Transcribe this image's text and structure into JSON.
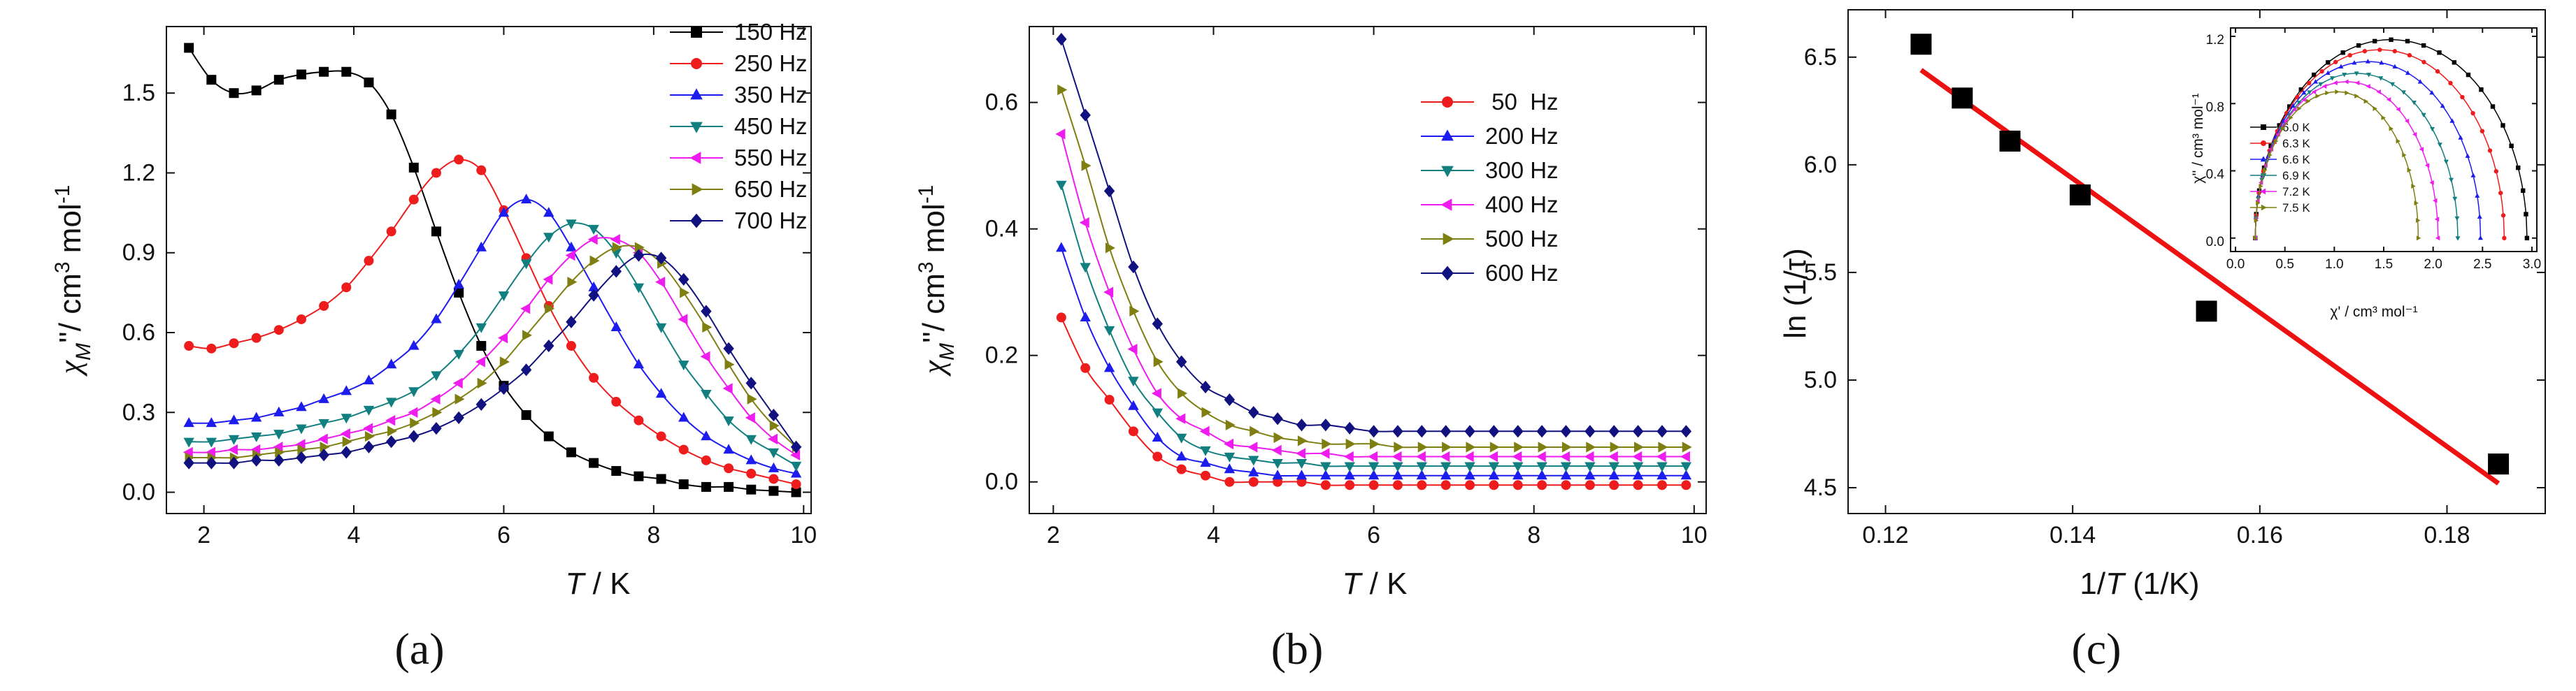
{
  "chart_data": [
    {
      "panel_label": "(a)",
      "type": "line",
      "xlabel_italic": "T",
      "xlabel_rest": " / K",
      "ylabel_chi": "χ",
      "ylabel_sub": "M",
      "ylabel_mid": "''/ cm",
      "ylabel_sup1": "3",
      "ylabel_unit": " mol",
      "ylabel_sup2": "-1",
      "xlim": [
        1.5,
        10.1
      ],
      "ylim": [
        -0.08,
        1.75
      ],
      "xticks": [
        2,
        4,
        6,
        8,
        10
      ],
      "yticks": [
        0.0,
        0.3,
        0.6,
        0.9,
        1.2,
        1.5
      ],
      "ytick_decimals": 1,
      "x": [
        1.8,
        2.1,
        2.4,
        2.7,
        3.0,
        3.3,
        3.6,
        3.9,
        4.2,
        4.5,
        4.8,
        5.1,
        5.4,
        5.7,
        6.0,
        6.3,
        6.6,
        6.9,
        7.2,
        7.5,
        7.8,
        8.1,
        8.4,
        8.7,
        9.0,
        9.3,
        9.6,
        9.9
      ],
      "series": [
        {
          "name": "150 Hz",
          "color": "#000000",
          "marker": "square",
          "values": [
            1.67,
            1.55,
            1.5,
            1.51,
            1.55,
            1.57,
            1.58,
            1.58,
            1.54,
            1.42,
            1.22,
            0.98,
            0.75,
            0.55,
            0.4,
            0.29,
            0.21,
            0.15,
            0.11,
            0.08,
            0.06,
            0.05,
            0.03,
            0.02,
            0.02,
            0.01,
            0.005,
            0.0
          ]
        },
        {
          "name": "250 Hz",
          "color": "#ee1c1c",
          "marker": "circle",
          "values": [
            0.55,
            0.54,
            0.56,
            0.58,
            0.61,
            0.65,
            0.7,
            0.77,
            0.87,
            0.98,
            1.1,
            1.2,
            1.25,
            1.21,
            1.06,
            0.88,
            0.7,
            0.55,
            0.43,
            0.34,
            0.27,
            0.21,
            0.16,
            0.12,
            0.09,
            0.07,
            0.05,
            0.03
          ]
        },
        {
          "name": "350 Hz",
          "color": "#1c1cee",
          "marker": "triangle-up",
          "values": [
            0.26,
            0.26,
            0.27,
            0.28,
            0.3,
            0.32,
            0.35,
            0.38,
            0.42,
            0.48,
            0.55,
            0.65,
            0.78,
            0.92,
            1.05,
            1.1,
            1.05,
            0.92,
            0.77,
            0.62,
            0.48,
            0.37,
            0.28,
            0.21,
            0.16,
            0.12,
            0.09,
            0.07
          ]
        },
        {
          "name": "450 Hz",
          "color": "#117f7f",
          "marker": "triangle-down",
          "values": [
            0.19,
            0.19,
            0.2,
            0.21,
            0.22,
            0.24,
            0.26,
            0.28,
            0.31,
            0.34,
            0.38,
            0.44,
            0.52,
            0.62,
            0.74,
            0.86,
            0.96,
            1.01,
            0.99,
            0.9,
            0.77,
            0.62,
            0.48,
            0.37,
            0.27,
            0.2,
            0.15,
            0.1
          ]
        },
        {
          "name": "550 Hz",
          "color": "#ee1cee",
          "marker": "triangle-left",
          "values": [
            0.15,
            0.15,
            0.16,
            0.16,
            0.17,
            0.18,
            0.2,
            0.22,
            0.24,
            0.27,
            0.3,
            0.35,
            0.41,
            0.49,
            0.58,
            0.69,
            0.8,
            0.89,
            0.95,
            0.95,
            0.9,
            0.79,
            0.65,
            0.51,
            0.39,
            0.28,
            0.2,
            0.14
          ]
        },
        {
          "name": "650 Hz",
          "color": "#7f7f11",
          "marker": "triangle-right",
          "values": [
            0.13,
            0.13,
            0.13,
            0.14,
            0.15,
            0.16,
            0.17,
            0.19,
            0.21,
            0.23,
            0.26,
            0.3,
            0.35,
            0.41,
            0.49,
            0.59,
            0.69,
            0.79,
            0.87,
            0.92,
            0.92,
            0.86,
            0.75,
            0.62,
            0.48,
            0.35,
            0.25,
            0.17
          ]
        },
        {
          "name": "700 Hz",
          "color": "#11117f",
          "marker": "diamond",
          "values": [
            0.11,
            0.11,
            0.11,
            0.12,
            0.12,
            0.13,
            0.14,
            0.15,
            0.17,
            0.19,
            0.21,
            0.24,
            0.28,
            0.33,
            0.39,
            0.46,
            0.55,
            0.64,
            0.74,
            0.83,
            0.89,
            0.88,
            0.8,
            0.68,
            0.54,
            0.41,
            0.29,
            0.17
          ]
        }
      ]
    },
    {
      "panel_label": "(b)",
      "type": "line",
      "xlabel_italic": "T",
      "xlabel_rest": " / K",
      "ylabel_chi": "χ",
      "ylabel_sub": "M",
      "ylabel_mid": "''/ cm",
      "ylabel_sup1": "3",
      "ylabel_unit": " mol",
      "ylabel_sup2": "-1",
      "xlim": [
        1.7,
        10.15
      ],
      "ylim": [
        -0.05,
        0.72
      ],
      "xticks": [
        2,
        4,
        6,
        8,
        10
      ],
      "yticks": [
        0.0,
        0.2,
        0.4,
        0.6
      ],
      "ytick_decimals": 1,
      "x": [
        2.1,
        2.4,
        2.7,
        3.0,
        3.3,
        3.6,
        3.9,
        4.2,
        4.5,
        4.8,
        5.1,
        5.4,
        5.7,
        6.0,
        6.3,
        6.6,
        6.9,
        7.2,
        7.5,
        7.8,
        8.1,
        8.4,
        8.7,
        9.0,
        9.3,
        9.6,
        9.9
      ],
      "series": [
        {
          "name": " 50  Hz",
          "color": "#ee1c1c",
          "marker": "circle",
          "values": [
            0.26,
            0.18,
            0.13,
            0.08,
            0.04,
            0.02,
            0.01,
            0.0,
            0.0,
            0.0,
            0.0,
            -0.005,
            -0.005,
            -0.005,
            -0.005,
            -0.005,
            -0.005,
            -0.005,
            -0.005,
            -0.005,
            -0.005,
            -0.005,
            -0.005,
            -0.005,
            -0.005,
            -0.005,
            -0.005
          ]
        },
        {
          "name": "200 Hz",
          "color": "#1c1cee",
          "marker": "triangle-up",
          "values": [
            0.37,
            0.26,
            0.18,
            0.12,
            0.07,
            0.04,
            0.03,
            0.02,
            0.015,
            0.01,
            0.01,
            0.01,
            0.01,
            0.01,
            0.01,
            0.01,
            0.01,
            0.01,
            0.01,
            0.01,
            0.01,
            0.01,
            0.01,
            0.01,
            0.01,
            0.01,
            0.01
          ]
        },
        {
          "name": "300 Hz",
          "color": "#117f7f",
          "marker": "triangle-down",
          "values": [
            0.47,
            0.34,
            0.24,
            0.16,
            0.11,
            0.07,
            0.05,
            0.04,
            0.035,
            0.03,
            0.03,
            0.025,
            0.025,
            0.025,
            0.025,
            0.025,
            0.025,
            0.025,
            0.025,
            0.025,
            0.025,
            0.025,
            0.025,
            0.025,
            0.025,
            0.025,
            0.025
          ]
        },
        {
          "name": "400 Hz",
          "color": "#ee1cee",
          "marker": "triangle-left",
          "values": [
            0.55,
            0.41,
            0.3,
            0.21,
            0.14,
            0.1,
            0.08,
            0.06,
            0.055,
            0.05,
            0.045,
            0.045,
            0.04,
            0.04,
            0.04,
            0.04,
            0.04,
            0.04,
            0.04,
            0.04,
            0.04,
            0.04,
            0.04,
            0.04,
            0.04,
            0.04,
            0.04
          ]
        },
        {
          "name": "500 Hz",
          "color": "#7f7f11",
          "marker": "triangle-right",
          "values": [
            0.62,
            0.5,
            0.37,
            0.27,
            0.19,
            0.14,
            0.11,
            0.09,
            0.08,
            0.07,
            0.065,
            0.06,
            0.06,
            0.06,
            0.055,
            0.055,
            0.055,
            0.055,
            0.055,
            0.055,
            0.055,
            0.055,
            0.055,
            0.055,
            0.055,
            0.055,
            0.055
          ]
        },
        {
          "name": "600 Hz",
          "color": "#11117f",
          "marker": "diamond",
          "values": [
            0.7,
            0.58,
            0.46,
            0.34,
            0.25,
            0.19,
            0.15,
            0.13,
            0.11,
            0.1,
            0.09,
            0.09,
            0.085,
            0.08,
            0.08,
            0.08,
            0.08,
            0.08,
            0.08,
            0.08,
            0.08,
            0.08,
            0.08,
            0.08,
            0.08,
            0.08,
            0.08
          ]
        }
      ]
    },
    {
      "panel_label": "(c)",
      "type": "scatter",
      "xlabel_main": "1/",
      "xlabel_italic": "T",
      "xlabel_rest": " (1/K)",
      "ylabel": "ln (1/τ)",
      "xlim": [
        0.116,
        0.1905
      ],
      "ylim": [
        4.38,
        6.72
      ],
      "xticks": [
        0.12,
        0.14,
        0.16,
        0.18
      ],
      "yticks": [
        4.5,
        5.0,
        5.5,
        6.0,
        6.5
      ],
      "xtick_decimals": 2,
      "ytick_decimals": 1,
      "points": {
        "x": [
          0.1238,
          0.1282,
          0.1333,
          0.1408,
          0.1543,
          0.1855
        ],
        "y": [
          6.56,
          6.31,
          6.11,
          5.86,
          5.32,
          4.61
        ]
      },
      "fit_line": {
        "x": [
          0.1238,
          0.1855
        ],
        "y": [
          6.44,
          4.52
        ],
        "color": "#ee1111"
      },
      "inset": {
        "type": "line",
        "xlabel": "χ' / cm³ mol⁻¹",
        "ylabel": "χ'' / cm³ mol⁻¹",
        "xlim": [
          -0.05,
          3.05
        ],
        "ylim": [
          -0.08,
          1.25
        ],
        "xticks": [
          0.0,
          0.5,
          1.0,
          1.5,
          2.0,
          2.5,
          3.0
        ],
        "yticks": [
          0.0,
          0.4,
          0.8,
          1.2
        ],
        "series": [
          {
            "name": "6.0 K",
            "color": "#000000",
            "marker": "square",
            "x_min": 0.2,
            "x_max": 2.95,
            "peak": 1.18
          },
          {
            "name": "6.3 K",
            "color": "#ee1c1c",
            "marker": "circle",
            "x_min": 0.2,
            "x_max": 2.72,
            "peak": 1.12
          },
          {
            "name": "6.6 K",
            "color": "#1c1cee",
            "marker": "triangle-up",
            "x_min": 0.2,
            "x_max": 2.48,
            "peak": 1.05
          },
          {
            "name": "6.9 K",
            "color": "#117f7f",
            "marker": "triangle-down",
            "x_min": 0.2,
            "x_max": 2.25,
            "peak": 0.98
          },
          {
            "name": "7.2 K",
            "color": "#ee1cee",
            "marker": "triangle-left",
            "x_min": 0.2,
            "x_max": 2.05,
            "peak": 0.93
          },
          {
            "name": "7.5 K",
            "color": "#7f7f11",
            "marker": "triangle-right",
            "x_min": 0.2,
            "x_max": 1.85,
            "peak": 0.87
          }
        ]
      }
    }
  ]
}
